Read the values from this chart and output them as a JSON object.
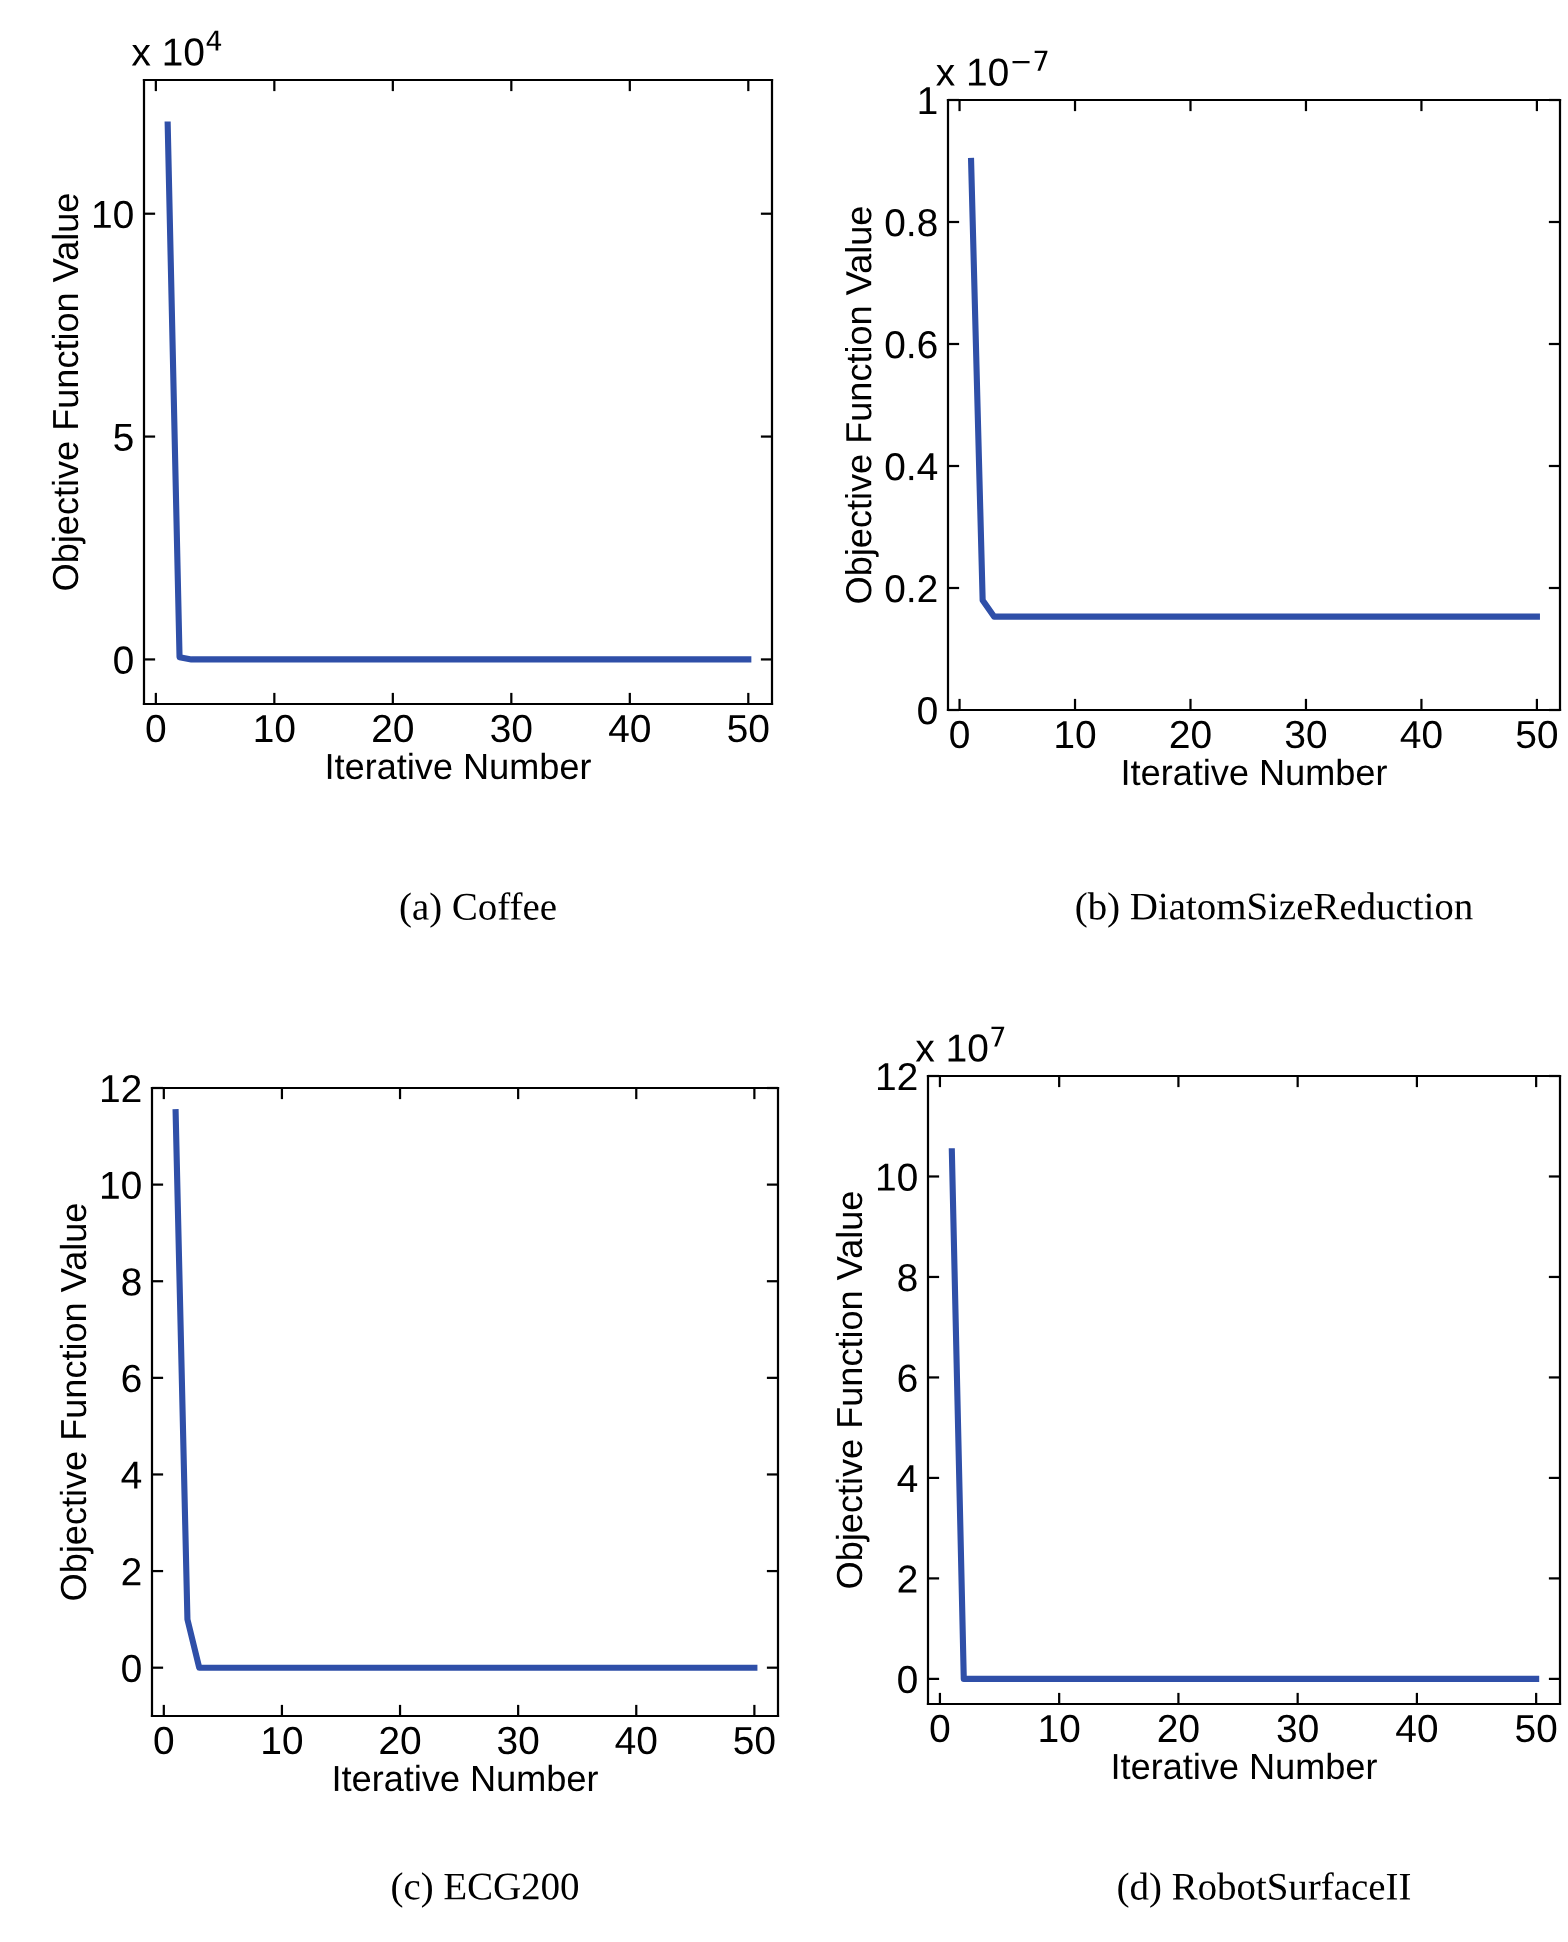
{
  "chart_data": [
    {
      "type": "line",
      "title": "(a) Coffee",
      "xlabel": "Iterative Number",
      "ylabel": "Objective Function Value",
      "annotations": [
        "x 10$^{4}$"
      ],
      "x": [
        1,
        2,
        3,
        10,
        20,
        30,
        40,
        50
      ],
      "series": [
        {
          "color": "#2f4fa8",
          "values": [
            12,
            0.05,
            0,
            0,
            0,
            0,
            0,
            0
          ]
        }
      ],
      "xlim": [
        -1,
        52
      ],
      "ylim": [
        -1,
        13
      ],
      "xticks": [
        0,
        10,
        20,
        30,
        40,
        50
      ],
      "yticks": [
        0,
        5,
        10
      ],
      "grid": false,
      "legend": false,
      "marker": "none",
      "line_style": "solid"
    },
    {
      "type": "line",
      "title": "(b) DiatomSizeReduction",
      "xlabel": "Iterative Number",
      "ylabel": "Objective Function Value",
      "annotations": [
        "x 10$^{−7}$"
      ],
      "x": [
        1,
        2,
        3,
        10,
        20,
        30,
        40,
        50
      ],
      "series": [
        {
          "color": "#2f4fa8",
          "values": [
            0.9,
            0.18,
            0.153,
            0.153,
            0.153,
            0.153,
            0.153,
            0.153
          ]
        }
      ],
      "xlim": [
        -1,
        52
      ],
      "ylim": [
        0,
        1
      ],
      "xticks": [
        0,
        10,
        20,
        30,
        40,
        50
      ],
      "yticks": [
        0,
        0.2,
        0.4,
        0.6,
        0.8,
        1
      ],
      "grid": false,
      "legend": false,
      "marker": "none",
      "line_style": "solid"
    },
    {
      "type": "line",
      "title": "(c) ECG200",
      "xlabel": "Iterative Number",
      "ylabel": "Objective Function Value",
      "x": [
        1,
        2,
        3,
        10,
        20,
        30,
        40,
        50
      ],
      "series": [
        {
          "color": "#2f4fa8",
          "values": [
            11.5,
            1,
            0,
            0,
            0,
            0,
            0,
            0
          ]
        }
      ],
      "xlim": [
        -1,
        52
      ],
      "ylim": [
        -1,
        12
      ],
      "xticks": [
        0,
        10,
        20,
        30,
        40,
        50
      ],
      "yticks": [
        0,
        2,
        4,
        6,
        8,
        10,
        12
      ],
      "grid": false,
      "legend": false,
      "marker": "none",
      "line_style": "solid"
    },
    {
      "type": "line",
      "title": "(d) RobotSurfaceII",
      "xlabel": "Iterative Number",
      "ylabel": "Objective Function Value",
      "annotations": [
        "x 10$^{7}$"
      ],
      "x": [
        1,
        2,
        3,
        10,
        20,
        30,
        40,
        50
      ],
      "series": [
        {
          "color": "#2f4fa8",
          "values": [
            10.5,
            0,
            0,
            0,
            0,
            0,
            0,
            0
          ]
        }
      ],
      "xlim": [
        -1,
        52
      ],
      "ylim": [
        -0.5,
        12
      ],
      "xticks": [
        0,
        10,
        20,
        30,
        40,
        50
      ],
      "yticks": [
        0,
        2,
        4,
        6,
        8,
        10,
        12
      ],
      "grid": false,
      "legend": false,
      "marker": "none",
      "line_style": "solid"
    }
  ]
}
